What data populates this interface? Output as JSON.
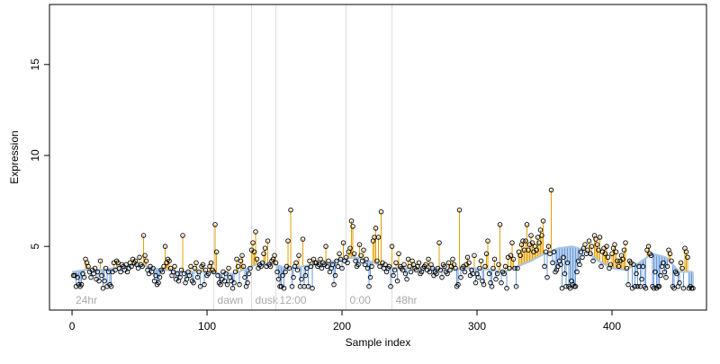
{
  "chart_data": {
    "type": "scatter",
    "x_label": "Sample index",
    "y_label": "Expression",
    "xlim": [
      -16.7,
      470
    ],
    "ylim": [
      1.5,
      18.3
    ],
    "xticks": [
      0,
      100,
      200,
      300,
      400
    ],
    "yticks": [
      5,
      10,
      15
    ],
    "point_color": "#000000",
    "above_color": "#e69f00",
    "below_color": "#6b9bd8",
    "fit_color": "#a9c4e4",
    "region_line_color": "#dddddd",
    "regions": [
      {
        "start": 0,
        "label": "24hr"
      },
      {
        "start": 105,
        "label": "dawn"
      },
      {
        "start": 133,
        "label": "dusk"
      },
      {
        "start": 151,
        "label": "12:00"
      },
      {
        "start": 203,
        "label": "0:00"
      },
      {
        "start": 237,
        "label": "48hr"
      }
    ],
    "fit": {
      "x": [
        0,
        10,
        20,
        30,
        40,
        50,
        60,
        70,
        80,
        90,
        100,
        110,
        120,
        130,
        140,
        150,
        160,
        170,
        180,
        190,
        200,
        210,
        220,
        230,
        240,
        250,
        260,
        270,
        280,
        290,
        300,
        310,
        320,
        330,
        340,
        350,
        360,
        370,
        380,
        390,
        400,
        410,
        420,
        430,
        440,
        450,
        460
      ],
      "values": [
        3.6,
        3.7,
        3.7,
        3.8,
        3.9,
        4.0,
        3.8,
        3.7,
        3.6,
        3.6,
        3.6,
        3.5,
        3.5,
        3.8,
        4.1,
        4.0,
        3.8,
        3.9,
        4.0,
        4.1,
        4.3,
        4.4,
        4.2,
        3.9,
        3.8,
        3.8,
        3.8,
        3.8,
        3.7,
        3.8,
        3.8,
        3.7,
        3.6,
        3.9,
        4.2,
        4.6,
        4.9,
        5.0,
        4.8,
        4.2,
        3.8,
        3.7,
        4.1,
        4.6,
        4.4,
        3.6,
        3.6
      ]
    },
    "x": [
      1,
      2,
      3,
      4,
      5,
      6,
      7,
      8,
      9,
      10,
      11,
      12,
      13,
      14,
      15,
      16,
      17,
      18,
      19,
      20,
      21,
      22,
      23,
      24,
      25,
      26,
      27,
      28,
      29,
      30,
      31,
      32,
      33,
      34,
      35,
      36,
      37,
      38,
      39,
      40,
      41,
      42,
      43,
      44,
      45,
      46,
      47,
      48,
      49,
      50,
      51,
      52,
      53,
      54,
      55,
      56,
      57,
      58,
      59,
      60,
      61,
      62,
      63,
      64,
      65,
      66,
      67,
      68,
      69,
      70,
      71,
      72,
      73,
      74,
      75,
      76,
      77,
      78,
      79,
      80,
      81,
      82,
      83,
      84,
      85,
      86,
      87,
      88,
      89,
      90,
      91,
      92,
      93,
      94,
      95,
      96,
      97,
      98,
      99,
      100,
      101,
      102,
      103,
      104,
      105,
      106,
      107,
      108,
      109,
      110,
      111,
      112,
      113,
      114,
      115,
      116,
      117,
      118,
      119,
      120,
      121,
      122,
      123,
      124,
      125,
      126,
      127,
      128,
      129,
      130,
      131,
      132,
      133,
      134,
      135,
      136,
      137,
      138,
      139,
      140,
      141,
      142,
      143,
      144,
      145,
      146,
      147,
      148,
      149,
      150,
      151,
      152,
      153,
      154,
      155,
      156,
      157,
      158,
      159,
      160,
      161,
      162,
      163,
      164,
      165,
      166,
      167,
      168,
      169,
      170,
      171,
      172,
      173,
      174,
      175,
      176,
      177,
      178,
      179,
      180,
      181,
      182,
      183,
      184,
      185,
      186,
      187,
      188,
      189,
      190,
      191,
      192,
      193,
      194,
      195,
      196,
      197,
      198,
      199,
      200,
      201,
      202,
      203,
      204,
      205,
      206,
      207,
      208,
      209,
      210,
      211,
      212,
      213,
      214,
      215,
      216,
      217,
      218,
      219,
      220,
      221,
      222,
      223,
      224,
      225,
      226,
      227,
      228,
      229,
      230,
      231,
      232,
      233,
      234,
      235,
      236,
      237,
      238,
      239,
      240,
      241,
      242,
      243,
      244,
      245,
      246,
      247,
      248,
      249,
      250,
      251,
      252,
      253,
      254,
      255,
      256,
      257,
      258,
      259,
      260,
      261,
      262,
      263,
      264,
      265,
      266,
      267,
      268,
      269,
      270,
      271,
      272,
      273,
      274,
      275,
      276,
      277,
      278,
      279,
      280,
      281,
      282,
      283,
      284,
      285,
      286,
      287,
      288,
      289,
      290,
      291,
      292,
      293,
      294,
      295,
      296,
      297,
      298,
      299,
      300,
      301,
      302,
      303,
      304,
      305,
      306,
      307,
      308,
      309,
      310,
      311,
      312,
      313,
      314,
      315,
      316,
      317,
      318,
      319,
      320,
      321,
      322,
      323,
      324,
      325,
      326,
      327,
      328,
      329,
      330,
      331,
      332,
      333,
      334,
      335,
      336,
      337,
      338,
      339,
      340,
      341,
      342,
      343,
      344,
      345,
      346,
      347,
      348,
      349,
      350,
      351,
      352,
      353,
      354,
      355,
      356,
      357,
      358,
      359,
      360,
      361,
      362,
      363,
      364,
      365,
      366,
      367,
      368,
      369,
      370,
      371,
      372,
      373,
      374,
      375,
      376,
      377,
      378,
      379,
      380,
      381,
      382,
      383,
      384,
      385,
      386,
      387,
      388,
      389,
      390,
      391,
      392,
      393,
      394,
      395,
      396,
      397,
      398,
      399,
      400,
      401,
      402,
      403,
      404,
      405,
      406,
      407,
      408,
      409,
      410,
      411,
      412,
      413,
      414,
      415,
      416,
      417,
      418,
      419,
      420,
      421,
      422,
      423,
      424,
      425,
      426,
      427,
      428,
      429,
      430,
      431,
      432,
      433,
      434,
      435,
      436,
      437,
      438,
      439,
      440,
      441,
      442,
      443,
      444,
      445,
      446,
      447,
      448,
      449,
      450,
      451,
      452,
      453,
      454,
      455,
      456,
      457,
      458,
      459,
      460
    ],
    "values": [
      3.4,
      3.4,
      2.8,
      3.3,
      2.9,
      2.8,
      2.9,
      3.5,
      3.3,
      4.3,
      4.1,
      3.9,
      3.6,
      3.3,
      3.7,
      3.5,
      3.8,
      3.2,
      3.6,
      3.1,
      4.2,
      3.4,
      2.7,
      3.1,
      3.8,
      2.8,
      3.6,
      2.9,
      2.8,
      3.6,
      4.1,
      3.7,
      4.2,
      4.1,
      3.8,
      3.6,
      4.0,
      3.9,
      3.7,
      4.0,
      3.6,
      3.8,
      4.1,
      3.9,
      4.3,
      4.1,
      4.2,
      4.0,
      3.8,
      4.4,
      4.0,
      3.9,
      5.6,
      4.5,
      4.2,
      3.7,
      3.5,
      3.9,
      3.6,
      3.8,
      3.1,
      3.4,
      2.9,
      3.0,
      3.3,
      3.7,
      3.6,
      3.9,
      5.0,
      4.1,
      4.3,
      4.2,
      3.8,
      3.4,
      3.6,
      3.9,
      3.2,
      3.5,
      3.1,
      3.3,
      3.7,
      5.6,
      3.5,
      3.0,
      3.2,
      3.6,
      3.4,
      3.9,
      3.1,
      3.0,
      3.8,
      4.1,
      3.3,
      3.6,
      2.8,
      3.9,
      4.0,
      2.9,
      3.7,
      3.4,
      3.5,
      3.9,
      4.1,
      3.7,
      3.6,
      6.2,
      4.7,
      3.4,
      3.0,
      2.9,
      3.2,
      3.6,
      3.1,
      3.5,
      2.9,
      3.8,
      3.3,
      3.1,
      2.7,
      3.0,
      3.6,
      4.3,
      3.9,
      2.9,
      4.2,
      4.5,
      3.9,
      3.3,
      2.8,
      3.0,
      3.5,
      3.8,
      4.8,
      5.2,
      4.7,
      5.8,
      4.3,
      3.8,
      4.0,
      3.9,
      4.1,
      4.6,
      4.9,
      3.9,
      5.3,
      4.0,
      3.9,
      4.2,
      4.3,
      4.5,
      4.1,
      3.6,
      3.2,
      2.8,
      2.8,
      3.4,
      2.7,
      3.6,
      3.9,
      5.3,
      3.8,
      7.0,
      2.8,
      3.3,
      3.9,
      4.1,
      3.7,
      4.5,
      2.8,
      3.2,
      5.4,
      2.8,
      3.4,
      3.8,
      2.8,
      4.2,
      3.9,
      2.7,
      4.3,
      4.1,
      4.1,
      3.9,
      4.0,
      4.3,
      3.8,
      4.1,
      4.0,
      5.0,
      3.9,
      4.2,
      3.6,
      3.8,
      4.0,
      2.9,
      3.4,
      4.2,
      3.9,
      4.6,
      4.3,
      3.8,
      5.2,
      4.2,
      4.4,
      4.1,
      4.7,
      4.9,
      6.4,
      6.1,
      4.6,
      4.2,
      3.9,
      4.0,
      5.1,
      4.5,
      4.2,
      4.8,
      4.0,
      4.3,
      3.8,
      2.8,
      3.3,
      3.9,
      5.3,
      5.5,
      6.0,
      4.2,
      5.5,
      3.9,
      6.9,
      4.1,
      3.8,
      4.0,
      3.6,
      3.8,
      3.9,
      2.8,
      5.0,
      3.4,
      3.7,
      4.1,
      3.1,
      4.6,
      3.9,
      3.8,
      3.7,
      4.0,
      3.5,
      3.2,
      4.3,
      3.9,
      3.6,
      4.2,
      4.0,
      3.8,
      3.7,
      3.9,
      4.1,
      3.5,
      3.6,
      3.8,
      3.9,
      4.0,
      3.7,
      4.3,
      3.6,
      4.0,
      3.8,
      3.4,
      3.6,
      3.5,
      3.8,
      5.2,
      3.7,
      3.3,
      4.0,
      3.9,
      3.6,
      3.5,
      4.1,
      3.7,
      3.9,
      4.3,
      4.0,
      3.8,
      2.8,
      2.9,
      7.0,
      3.3,
      3.8,
      3.9,
      3.6,
      4.0,
      4.4,
      4.1,
      3.4,
      3.7,
      3.5,
      4.5,
      3.0,
      3.5,
      3.3,
      3.8,
      4.2,
      3.1,
      2.9,
      3.9,
      4.6,
      5.3,
      3.5,
      3.0,
      2.8,
      3.8,
      4.3,
      3.2,
      3.5,
      4.0,
      6.2,
      3.0,
      3.6,
      3.5,
      3.9,
      2.7,
      4.4,
      3.8,
      4.5,
      5.2,
      4.3,
      3.8,
      2.8,
      3.8,
      4.7,
      4.5,
      5.1,
      5.3,
      4.8,
      5.3,
      6.2,
      4.8,
      5.1,
      5.6,
      5.2,
      4.7,
      5.0,
      4.8,
      5.5,
      5.2,
      5.9,
      5.6,
      6.4,
      3.9,
      4.7,
      3.3,
      5.0,
      4.6,
      8.1,
      4.1,
      4.7,
      3.6,
      3.7,
      3.9,
      4.2,
      4.0,
      2.7,
      4.4,
      3.5,
      2.8,
      4.1,
      2.8,
      2.7,
      3.1,
      2.9,
      2.8,
      2.8,
      3.6,
      4.2,
      4.0,
      4.7,
      4.4,
      4.9,
      5.1,
      4.6,
      4.8,
      5.3,
      4.6,
      5.0,
      4.2,
      5.6,
      5.4,
      5.1,
      4.8,
      5.5,
      3.9,
      4.7,
      4.9,
      4.6,
      5.0,
      4.4,
      3.8,
      4.0,
      4.6,
      4.9,
      5.1,
      4.7,
      4.2,
      3.9,
      4.2,
      4.5,
      4.3,
      4.8,
      5.2,
      3.8,
      2.9,
      4.2,
      4.1,
      2.7,
      4.0,
      2.8,
      3.5,
      2.8,
      3.9,
      2.8,
      3.2,
      3.9,
      2.8,
      2.7,
      4.8,
      5.0,
      4.6,
      4.5,
      2.8,
      2.7,
      3.6,
      2.7,
      2.8,
      2.8,
      3.4,
      3.9,
      4.1,
      3.6,
      3.3,
      3.9,
      4.8,
      4.6,
      4.2,
      2.8,
      2.7,
      3.6,
      3.5,
      2.8,
      3.0,
      4.1,
      3.8,
      2.7,
      4.9,
      4.7,
      4.4,
      2.7,
      2.8,
      2.7,
      2.7
    ]
  }
}
